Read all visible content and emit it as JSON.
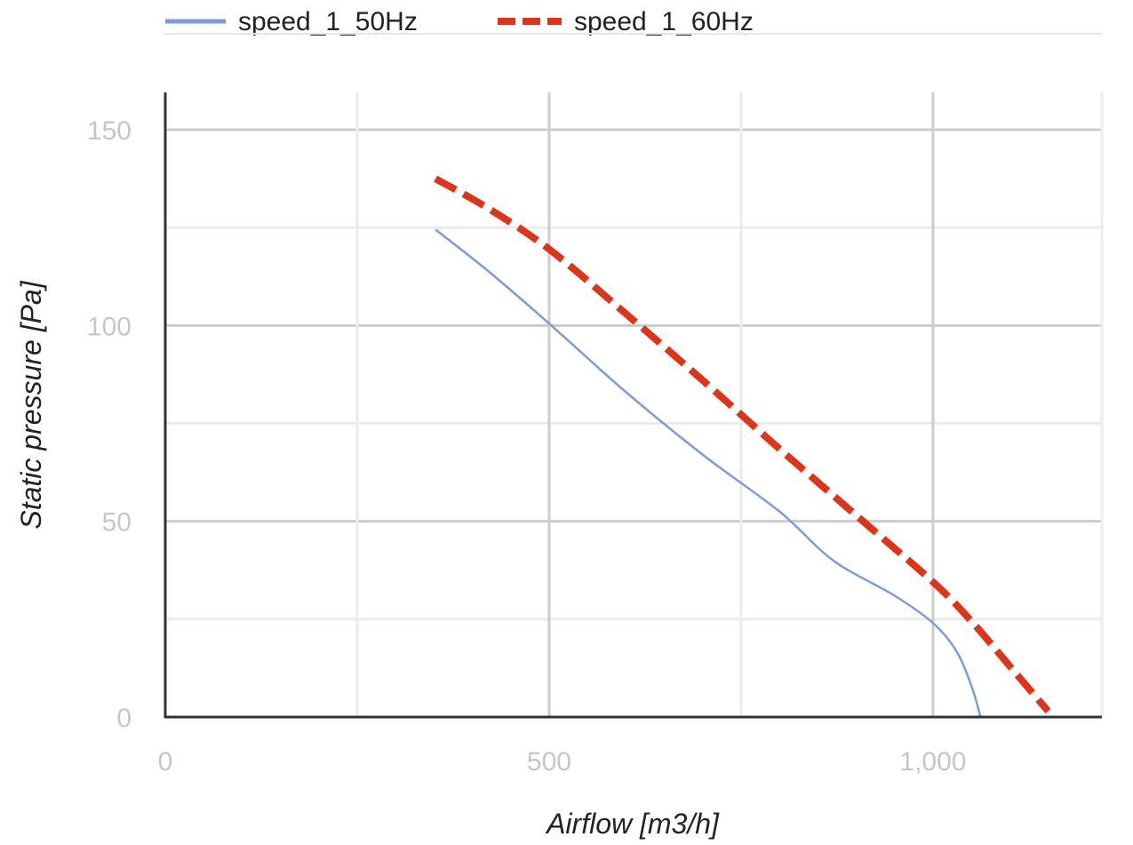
{
  "chart_data": {
    "type": "line",
    "xlabel": "Airflow [m3/h]",
    "ylabel": "Static pressure [Pa]",
    "xlim": [
      0,
      1220
    ],
    "ylim": [
      0,
      150
    ],
    "x_ticks": [
      0,
      500,
      1000
    ],
    "x_tick_labels": [
      "0",
      "500",
      "1,000"
    ],
    "x_gridlines": [
      0,
      250,
      500,
      750,
      1000,
      1220
    ],
    "y_ticks": [
      0,
      50,
      100,
      150
    ],
    "y_tick_labels": [
      "0",
      "50",
      "100",
      "150"
    ],
    "y_gridlines": [
      0,
      25,
      50,
      75,
      100,
      125,
      150
    ],
    "grid": true,
    "legend_position": "top",
    "series": [
      {
        "name": "speed_1_50Hz",
        "color": "#7a9bdc",
        "style": "solid",
        "x": [
          352,
          420,
          500,
          600,
          700,
          800,
          870,
          950,
          1000,
          1030,
          1050,
          1062
        ],
        "y": [
          124.5,
          114,
          100.5,
          83,
          67,
          52.5,
          40,
          31,
          24,
          17,
          8,
          0
        ]
      },
      {
        "name": "speed_1_60Hz",
        "color": "#d9361c",
        "style": "dashed",
        "x": [
          352,
          420,
          500,
          600,
          700,
          800,
          900,
          1000,
          1050,
          1100,
          1150
        ],
        "y": [
          137.5,
          130,
          119.5,
          103,
          86,
          68.5,
          51.5,
          34.5,
          24.5,
          13,
          1.5
        ]
      }
    ]
  }
}
